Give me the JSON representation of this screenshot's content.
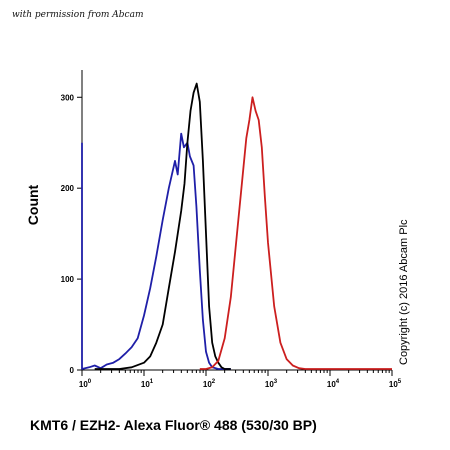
{
  "watermark_text": "with permission from Abcam",
  "copyright_text": "Copyright (c) 2016 Abcam Plc",
  "chart_data": {
    "type": "line",
    "title": "",
    "xlabel": "KMT6 / EZH2- Alexa Fluor® 488 (530/30 BP)",
    "ylabel": "Count",
    "x_scale": "log",
    "xlim": [
      1,
      100000
    ],
    "ylim": [
      0,
      330
    ],
    "x_ticks": [
      {
        "value": 1,
        "base": "10",
        "exp": "0"
      },
      {
        "value": 10,
        "base": "10",
        "exp": "1"
      },
      {
        "value": 100,
        "base": "10",
        "exp": "2"
      },
      {
        "value": 1000,
        "base": "10",
        "exp": "3"
      },
      {
        "value": 10000,
        "base": "10",
        "exp": "4"
      },
      {
        "value": 100000,
        "base": "10",
        "exp": "5"
      }
    ],
    "y_ticks": [
      0,
      100,
      200,
      300
    ],
    "series": [
      {
        "color": "#1f1fa8",
        "x": [
          0.8,
          0.9,
          1.0,
          1.3,
          1.6,
          2.0,
          2.5,
          3.2,
          4.0,
          5.0,
          6.3,
          7.9,
          10,
          12.6,
          15.8,
          20,
          25.1,
          31.6,
          35,
          39.8,
          44,
          50.1,
          55,
          63.1,
          70,
          79.4,
          89,
          100,
          112,
          126,
          158,
          200,
          251
        ],
        "y": [
          250,
          6,
          0,
          3,
          5,
          2,
          6,
          8,
          12,
          18,
          25,
          35,
          60,
          90,
          125,
          165,
          200,
          230,
          215,
          260,
          245,
          250,
          235,
          225,
          180,
          110,
          55,
          20,
          8,
          3,
          1,
          0,
          0
        ]
      },
      {
        "color": "#000000",
        "x": [
          1.6,
          2.5,
          4.0,
          6.3,
          10,
          12.6,
          15.8,
          20,
          25.1,
          31.6,
          39.8,
          45,
          50.1,
          56.2,
          63.1,
          70.8,
          79.4,
          89.1,
          100,
          112,
          126,
          141,
          158,
          178,
          200,
          251
        ],
        "y": [
          0,
          0,
          1,
          3,
          8,
          15,
          30,
          50,
          90,
          130,
          175,
          205,
          250,
          285,
          305,
          315,
          295,
          230,
          150,
          70,
          30,
          15,
          8,
          3,
          1,
          0
        ]
      },
      {
        "color": "#cc1f1f",
        "x": [
          79.4,
          100,
          126,
          158,
          200,
          251,
          316,
          398,
          447,
          501,
          562,
          631,
          708,
          794,
          891,
          1000,
          1259,
          1585,
          1995,
          2512,
          3162,
          3981,
          5012,
          6310,
          10000,
          100000
        ],
        "y": [
          0,
          1,
          3,
          10,
          35,
          80,
          150,
          220,
          255,
          275,
          300,
          285,
          275,
          245,
          190,
          140,
          70,
          30,
          12,
          5,
          2,
          1,
          0,
          0,
          0,
          0
        ]
      }
    ]
  }
}
